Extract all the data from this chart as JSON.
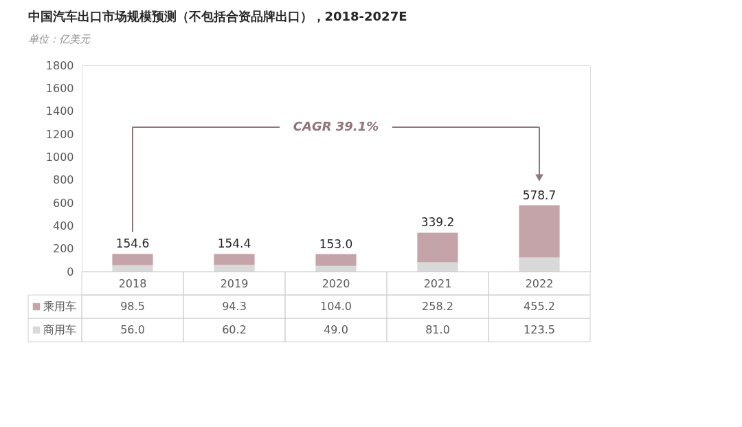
{
  "chart_data": {
    "type": "bar",
    "title": "中国汽车出口市场规模预测（不包括合资品牌出口），2018-2027E",
    "subtitle": "单位：亿美元",
    "categories": [
      "2018",
      "2019",
      "2020",
      "2021",
      "2022"
    ],
    "stacked": true,
    "series": [
      {
        "name": "商用车",
        "color": "#d9d9d9",
        "values": [
          56.0,
          60.2,
          49.0,
          81.0,
          123.5
        ],
        "value_labels": [
          "56.0",
          "60.2",
          "49.0",
          "81.0",
          "123.5"
        ]
      },
      {
        "name": "乘用车",
        "color": "#c4a4a9",
        "values": [
          98.5,
          94.3,
          104.0,
          258.2,
          455.2
        ],
        "value_labels": [
          "98.5",
          "94.3",
          "104.0",
          "258.2",
          "455.2"
        ]
      }
    ],
    "totals": [
      "154.6",
      "154.4",
      "153.0",
      "339.2",
      "578.7"
    ],
    "ylim": [
      0,
      1800
    ],
    "yticks": [
      0,
      200,
      400,
      600,
      800,
      1000,
      1200,
      1400,
      1600,
      1800
    ],
    "grid": false,
    "legend": "bottom",
    "annotations": [
      "CAGR 39.1%"
    ]
  }
}
